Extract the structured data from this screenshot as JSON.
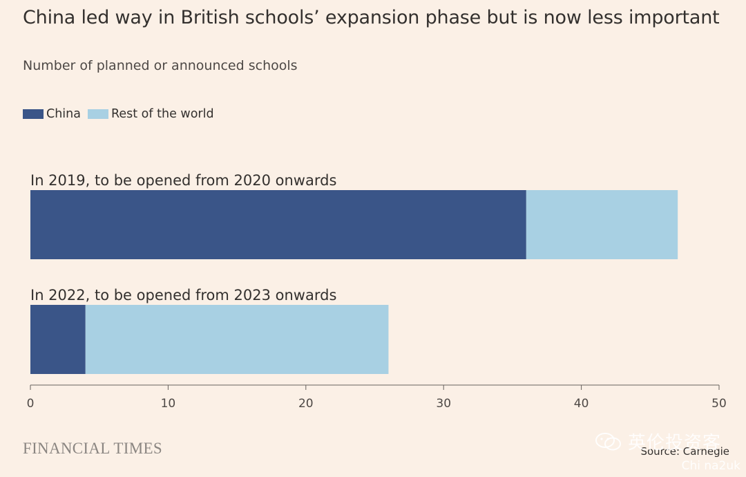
{
  "title": "China led way in British schools’ expansion phase but is now less important",
  "subtitle": "Number of planned or announced schools",
  "legend": [
    {
      "label": "China",
      "color": "#3a5588"
    },
    {
      "label": "Rest of the world",
      "color": "#a8d0e3"
    }
  ],
  "chart_data": {
    "type": "bar",
    "orientation": "horizontal",
    "stacked": true,
    "categories": [
      "In 2019, to be opened from 2020 onwards",
      "In 2022, to be opened from 2023 onwards"
    ],
    "series": [
      {
        "name": "China",
        "values": [
          36,
          4
        ],
        "color": "#3a5588"
      },
      {
        "name": "Rest of the world",
        "values": [
          11,
          22
        ],
        "color": "#a8d0e3"
      }
    ],
    "xlim": [
      0,
      50
    ],
    "xticks": [
      0,
      10,
      20,
      30,
      40,
      50
    ],
    "grid": false,
    "legend_position": "top-left"
  },
  "footer": {
    "brand": "FINANCIAL TIMES",
    "source": "Source: Carnegie"
  },
  "watermark": {
    "text": "英伦投资客",
    "sub": "Chi na2uk",
    "icon": "wechat-icon"
  }
}
